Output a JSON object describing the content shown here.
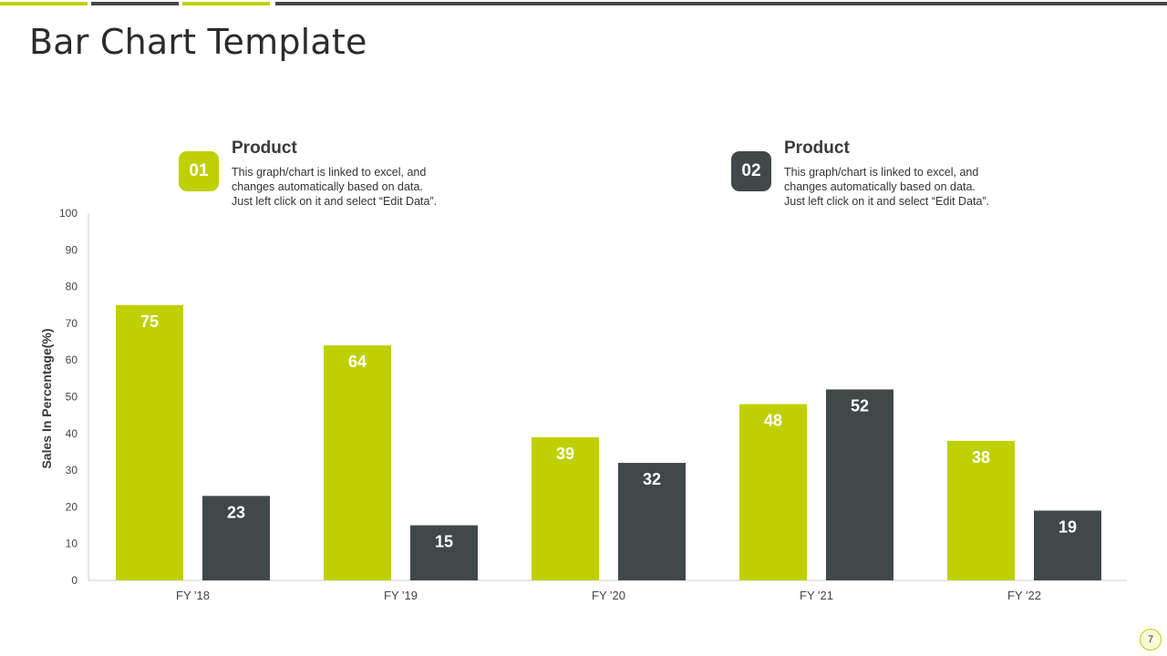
{
  "slide": {
    "title": "Bar Chart Template",
    "page_number": "7"
  },
  "colors": {
    "accent": "#bfd000",
    "dark": "#414849",
    "axis": "#d0d0d0",
    "tick_text": "#444444"
  },
  "legend": [
    {
      "number": "01",
      "heading": "Product",
      "lines": [
        "This graph/chart is linked to excel, and",
        "changes automatically based on data.",
        "Just left click on it and select “Edit Data”."
      ]
    },
    {
      "number": "02",
      "heading": "Product",
      "lines": [
        "This graph/chart is linked to excel, and",
        "changes automatically based on data.",
        "Just left click on it and select “Edit Data”."
      ]
    }
  ],
  "chart_data": {
    "type": "bar",
    "title": "",
    "xlabel": "",
    "ylabel": "Sales In Percentage(%)",
    "categories": [
      "FY '18",
      "FY '19",
      "FY '20",
      "FY '21",
      "FY '22"
    ],
    "series": [
      {
        "color": "#bfd000",
        "values": [
          75,
          64,
          39,
          48,
          38
        ]
      },
      {
        "color": "#414849",
        "values": [
          23,
          15,
          32,
          52,
          19
        ]
      }
    ],
    "ylim": [
      0,
      100
    ],
    "yticks": [
      0,
      10,
      20,
      30,
      40,
      50,
      60,
      70,
      80,
      90,
      100
    ],
    "grid": false,
    "data_labels": true
  }
}
